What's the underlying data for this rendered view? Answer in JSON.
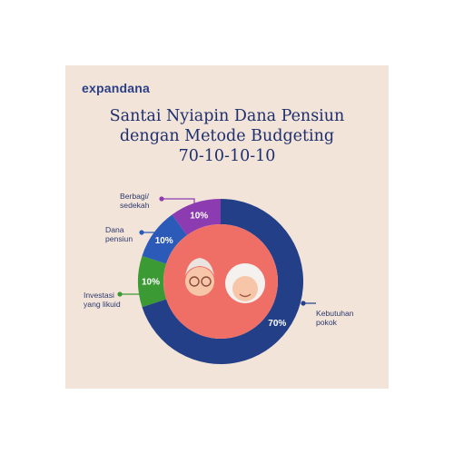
{
  "brand": "expandana",
  "title_lines": [
    "Santai Nyiapin Dana Pensiun",
    "dengan Metode Budgeting",
    "70-10-10-10"
  ],
  "chart_data": {
    "type": "pie",
    "style": "donut",
    "title": "Santai Nyiapin Dana Pensiun dengan Metode Budgeting 70-10-10-10",
    "slices": [
      {
        "label": "Kebutuhan pokok",
        "value": 70,
        "display": "70%",
        "label_lines": [
          "Kebutuhan",
          "pokok"
        ],
        "color": "#223f88"
      },
      {
        "label": "Investasi yang likuid",
        "value": 10,
        "display": "10%",
        "label_lines": [
          "Investasi",
          "yang likuid"
        ],
        "color": "#3b9a34"
      },
      {
        "label": "Dana pensiun",
        "value": 10,
        "display": "10%",
        "label_lines": [
          "Dana",
          "pensiun"
        ],
        "color": "#2b5ab8"
      },
      {
        "label": "Berbagi/ sedekah",
        "value": 10,
        "display": "10%",
        "label_lines": [
          "Berbagi/",
          "sedekah"
        ],
        "color": "#8d3bb0"
      }
    ],
    "center_color": "#ef6f66",
    "label_color": "#ffffff"
  }
}
